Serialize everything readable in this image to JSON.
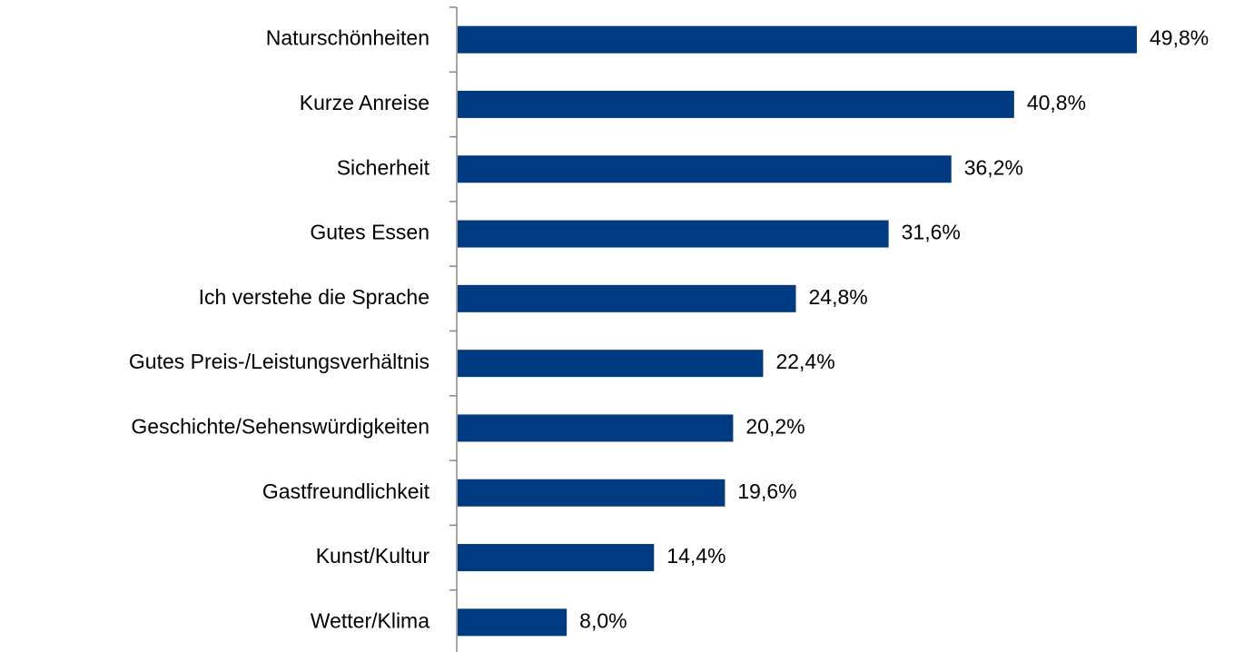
{
  "chart_data": {
    "type": "bar",
    "orientation": "horizontal",
    "categories": [
      "Naturschönheiten",
      "Kurze Anreise",
      "Sicherheit",
      "Gutes Essen",
      "Ich verstehe die Sprache",
      "Gutes Preis-/Leistungsverhältnis",
      "Geschichte/Sehenswürdigkeiten",
      "Gastfreundlichkeit",
      "Kunst/Kultur",
      "Wetter/Klima"
    ],
    "values": [
      49.8,
      40.8,
      36.2,
      31.6,
      24.8,
      22.4,
      20.2,
      19.6,
      14.4,
      8.0
    ],
    "value_labels": [
      "49,8%",
      "40,8%",
      "36,2%",
      "31,6%",
      "24,8%",
      "22,4%",
      "20,2%",
      "19,6%",
      "14,4%",
      "8,0%"
    ],
    "color": "#003a80"
  }
}
